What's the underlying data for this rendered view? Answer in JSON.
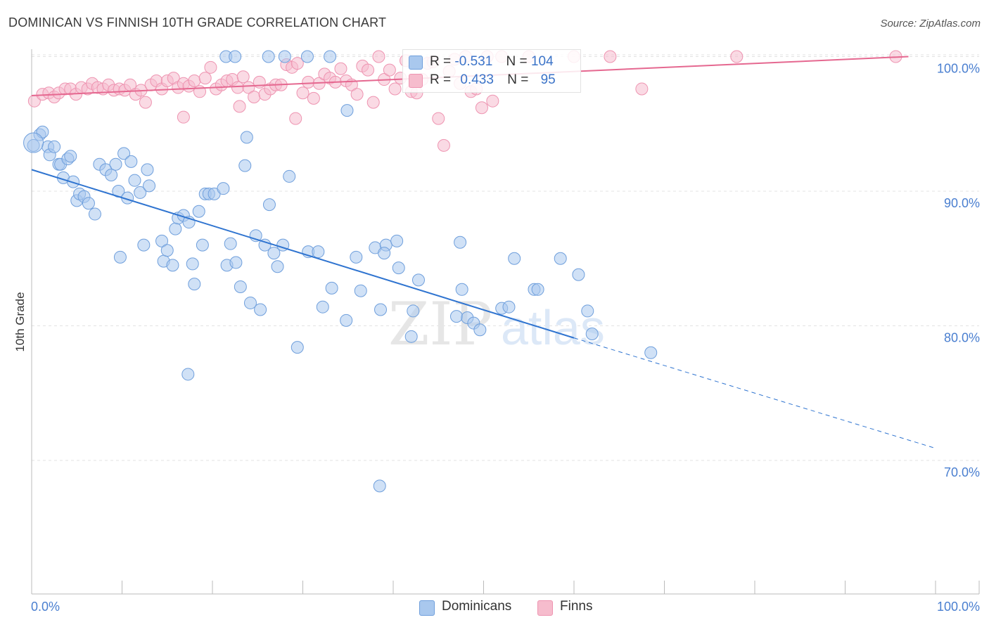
{
  "title": "DOMINICAN VS FINNISH 10TH GRADE CORRELATION CHART",
  "source": "Source: ZipAtlas.com",
  "colors": {
    "dominicans_fill": "#a9c8ee",
    "dominicans_stroke": "#6f9fdc",
    "dominicans_line": "#2f74d0",
    "finns_fill": "#f6bccd",
    "finns_stroke": "#ee94b1",
    "finns_line": "#e56890",
    "axis_label": "#4a7fd0",
    "grid": "#e3e3e3"
  },
  "legend": {
    "rows": [
      {
        "r_label": "R =",
        "r_value": "-0.531",
        "n_label": "N =",
        "n_value": "104"
      },
      {
        "r_label": "R =",
        "r_value": "0.433",
        "n_label": "N =",
        "n_value": "95"
      }
    ]
  },
  "bottom_legend": {
    "dominicans": "Dominicans",
    "finns": "Finns"
  },
  "watermark": {
    "part1": "ZIP",
    "part2": "atlas"
  },
  "chart_data": {
    "type": "scatter",
    "title": "DOMINICAN VS FINNISH 10TH GRADE CORRELATION CHART",
    "xlabel": "",
    "ylabel": "10th Grade",
    "xlim": [
      0,
      100
    ],
    "ylim": [
      59,
      101
    ],
    "x_tick_labels": [
      "0.0%",
      "100.0%"
    ],
    "y_ticks": [
      70,
      80,
      90,
      100
    ],
    "y_tick_labels": [
      "70.0%",
      "80.0%",
      "90.0%",
      "100.0%"
    ],
    "grid": true,
    "legend_position": "top-center",
    "series": [
      {
        "name": "Dominicans",
        "r": -0.531,
        "n": 104,
        "trend": {
          "x0": 0,
          "y0": 91.6,
          "x1": 60,
          "y1": 79.1,
          "dash_to_x": 100,
          "dash_to_y": 70.9
        },
        "points": [
          [
            0.2,
            93.4
          ],
          [
            0.9,
            94.2
          ],
          [
            1.2,
            94.4
          ],
          [
            1.8,
            93.3
          ],
          [
            2.0,
            92.7
          ],
          [
            2.5,
            93.3
          ],
          [
            3.0,
            92.0
          ],
          [
            3.2,
            92.0
          ],
          [
            3.5,
            91.0
          ],
          [
            4.0,
            92.4
          ],
          [
            4.3,
            92.6
          ],
          [
            4.6,
            90.7
          ],
          [
            5.0,
            89.3
          ],
          [
            5.3,
            89.8
          ],
          [
            5.8,
            89.6
          ],
          [
            6.3,
            89.1
          ],
          [
            7.0,
            88.3
          ],
          [
            7.5,
            92.0
          ],
          [
            8.2,
            91.6
          ],
          [
            8.8,
            91.2
          ],
          [
            9.3,
            92.0
          ],
          [
            9.6,
            90.0
          ],
          [
            10.2,
            92.8
          ],
          [
            10.6,
            89.5
          ],
          [
            11.0,
            92.2
          ],
          [
            11.4,
            90.8
          ],
          [
            12.0,
            89.9
          ],
          [
            12.4,
            86.0
          ],
          [
            12.8,
            91.6
          ],
          [
            13.0,
            90.4
          ],
          [
            9.8,
            85.1
          ],
          [
            14.4,
            86.3
          ],
          [
            14.6,
            84.8
          ],
          [
            15.0,
            85.6
          ],
          [
            15.6,
            84.5
          ],
          [
            15.9,
            87.2
          ],
          [
            16.2,
            88.0
          ],
          [
            16.8,
            88.2
          ],
          [
            17.4,
            87.7
          ],
          [
            17.8,
            84.6
          ],
          [
            18.0,
            83.1
          ],
          [
            18.5,
            88.5
          ],
          [
            18.9,
            86.0
          ],
          [
            19.2,
            89.8
          ],
          [
            19.6,
            89.8
          ],
          [
            20.2,
            89.8
          ],
          [
            21.2,
            90.2
          ],
          [
            21.6,
            84.5
          ],
          [
            22.0,
            86.1
          ],
          [
            22.6,
            84.7
          ],
          [
            23.1,
            82.9
          ],
          [
            23.6,
            91.9
          ],
          [
            24.2,
            81.7
          ],
          [
            24.8,
            86.7
          ],
          [
            25.3,
            81.2
          ],
          [
            25.8,
            86.0
          ],
          [
            26.3,
            89.0
          ],
          [
            26.8,
            85.4
          ],
          [
            27.2,
            84.4
          ],
          [
            27.8,
            86.0
          ],
          [
            28.5,
            91.1
          ],
          [
            23.8,
            94.0
          ],
          [
            29.4,
            78.4
          ],
          [
            30.6,
            85.5
          ],
          [
            31.7,
            85.5
          ],
          [
            32.2,
            81.4
          ],
          [
            33.2,
            82.8
          ],
          [
            17.3,
            76.4
          ],
          [
            34.8,
            80.4
          ],
          [
            34.9,
            96.0
          ],
          [
            35.9,
            85.1
          ],
          [
            36.4,
            82.6
          ],
          [
            38.0,
            85.8
          ],
          [
            38.6,
            81.2
          ],
          [
            39.2,
            86.0
          ],
          [
            39.0,
            85.4
          ],
          [
            40.4,
            86.3
          ],
          [
            40.6,
            84.3
          ],
          [
            42.0,
            79.2
          ],
          [
            42.2,
            81.1
          ],
          [
            42.8,
            83.4
          ],
          [
            47.0,
            80.7
          ],
          [
            47.4,
            86.2
          ],
          [
            47.6,
            82.7
          ],
          [
            48.2,
            80.6
          ],
          [
            48.9,
            80.2
          ],
          [
            49.6,
            79.7
          ],
          [
            52.0,
            81.3
          ],
          [
            52.8,
            81.4
          ],
          [
            53.4,
            85.0
          ],
          [
            55.6,
            82.7
          ],
          [
            56.0,
            82.7
          ],
          [
            58.5,
            85.0
          ],
          [
            60.5,
            83.8
          ],
          [
            61.5,
            81.1
          ],
          [
            62.0,
            79.4
          ],
          [
            68.5,
            78.0
          ],
          [
            38.5,
            68.1
          ],
          [
            21.5,
            100.0
          ],
          [
            22.5,
            100.0
          ],
          [
            26.2,
            100.0
          ],
          [
            30.5,
            100.0
          ],
          [
            33.0,
            100.0
          ],
          [
            28.0,
            100.0
          ]
        ]
      },
      {
        "name": "Finns",
        "r": 0.433,
        "n": 95,
        "trend": {
          "x0": 0,
          "y0": 97.1,
          "x1": 97,
          "y1": 100.0
        },
        "points": [
          [
            0.3,
            96.7
          ],
          [
            1.2,
            97.2
          ],
          [
            1.9,
            97.3
          ],
          [
            2.5,
            97.0
          ],
          [
            3.0,
            97.3
          ],
          [
            3.7,
            97.6
          ],
          [
            4.3,
            97.6
          ],
          [
            4.9,
            97.2
          ],
          [
            5.5,
            97.7
          ],
          [
            6.2,
            97.6
          ],
          [
            6.7,
            98.0
          ],
          [
            7.3,
            97.7
          ],
          [
            7.9,
            97.6
          ],
          [
            8.5,
            97.9
          ],
          [
            9.1,
            97.5
          ],
          [
            9.7,
            97.6
          ],
          [
            10.3,
            97.5
          ],
          [
            10.9,
            97.9
          ],
          [
            11.5,
            97.2
          ],
          [
            12.1,
            97.5
          ],
          [
            12.6,
            96.6
          ],
          [
            13.2,
            97.9
          ],
          [
            13.8,
            98.2
          ],
          [
            14.4,
            97.6
          ],
          [
            15.0,
            98.2
          ],
          [
            15.7,
            98.4
          ],
          [
            16.2,
            97.7
          ],
          [
            16.8,
            98.0
          ],
          [
            17.4,
            97.8
          ],
          [
            18.0,
            98.2
          ],
          [
            18.6,
            97.4
          ],
          [
            19.2,
            98.4
          ],
          [
            19.8,
            99.2
          ],
          [
            20.4,
            97.6
          ],
          [
            21.0,
            97.9
          ],
          [
            21.6,
            98.2
          ],
          [
            22.2,
            98.3
          ],
          [
            22.8,
            97.7
          ],
          [
            23.4,
            98.5
          ],
          [
            24.0,
            97.7
          ],
          [
            24.6,
            97.0
          ],
          [
            25.2,
            98.1
          ],
          [
            25.8,
            97.2
          ],
          [
            26.4,
            97.6
          ],
          [
            27.0,
            97.9
          ],
          [
            27.6,
            97.9
          ],
          [
            28.2,
            99.4
          ],
          [
            28.8,
            99.2
          ],
          [
            29.4,
            99.5
          ],
          [
            30.0,
            97.3
          ],
          [
            30.6,
            98.1
          ],
          [
            31.2,
            96.9
          ],
          [
            31.8,
            98.0
          ],
          [
            32.4,
            98.7
          ],
          [
            33.0,
            98.4
          ],
          [
            33.6,
            98.1
          ],
          [
            34.2,
            99.1
          ],
          [
            34.8,
            98.2
          ],
          [
            35.4,
            97.9
          ],
          [
            36.0,
            97.2
          ],
          [
            36.6,
            99.3
          ],
          [
            37.2,
            99.0
          ],
          [
            37.8,
            96.6
          ],
          [
            38.4,
            100.0
          ],
          [
            39.0,
            98.3
          ],
          [
            39.6,
            99.0
          ],
          [
            40.2,
            97.6
          ],
          [
            40.8,
            98.4
          ],
          [
            41.4,
            99.7
          ],
          [
            42.0,
            97.4
          ],
          [
            42.6,
            97.3
          ],
          [
            43.2,
            98.3
          ],
          [
            43.8,
            99.5
          ],
          [
            44.4,
            99.6
          ],
          [
            45.0,
            95.4
          ],
          [
            45.6,
            93.4
          ],
          [
            46.2,
            98.9
          ],
          [
            46.8,
            99.8
          ],
          [
            47.4,
            98.0
          ],
          [
            48.0,
            100.0
          ],
          [
            48.6,
            97.4
          ],
          [
            49.2,
            97.6
          ],
          [
            49.8,
            96.2
          ],
          [
            50.4,
            100.0
          ],
          [
            51.0,
            96.7
          ],
          [
            52.0,
            100.0
          ],
          [
            55.0,
            100.0
          ],
          [
            60.0,
            100.0
          ],
          [
            64.0,
            100.0
          ],
          [
            67.5,
            97.6
          ],
          [
            23.0,
            96.3
          ],
          [
            16.8,
            95.5
          ],
          [
            29.2,
            95.4
          ],
          [
            78.0,
            100.0
          ],
          [
            95.6,
            100.0
          ]
        ]
      }
    ]
  }
}
